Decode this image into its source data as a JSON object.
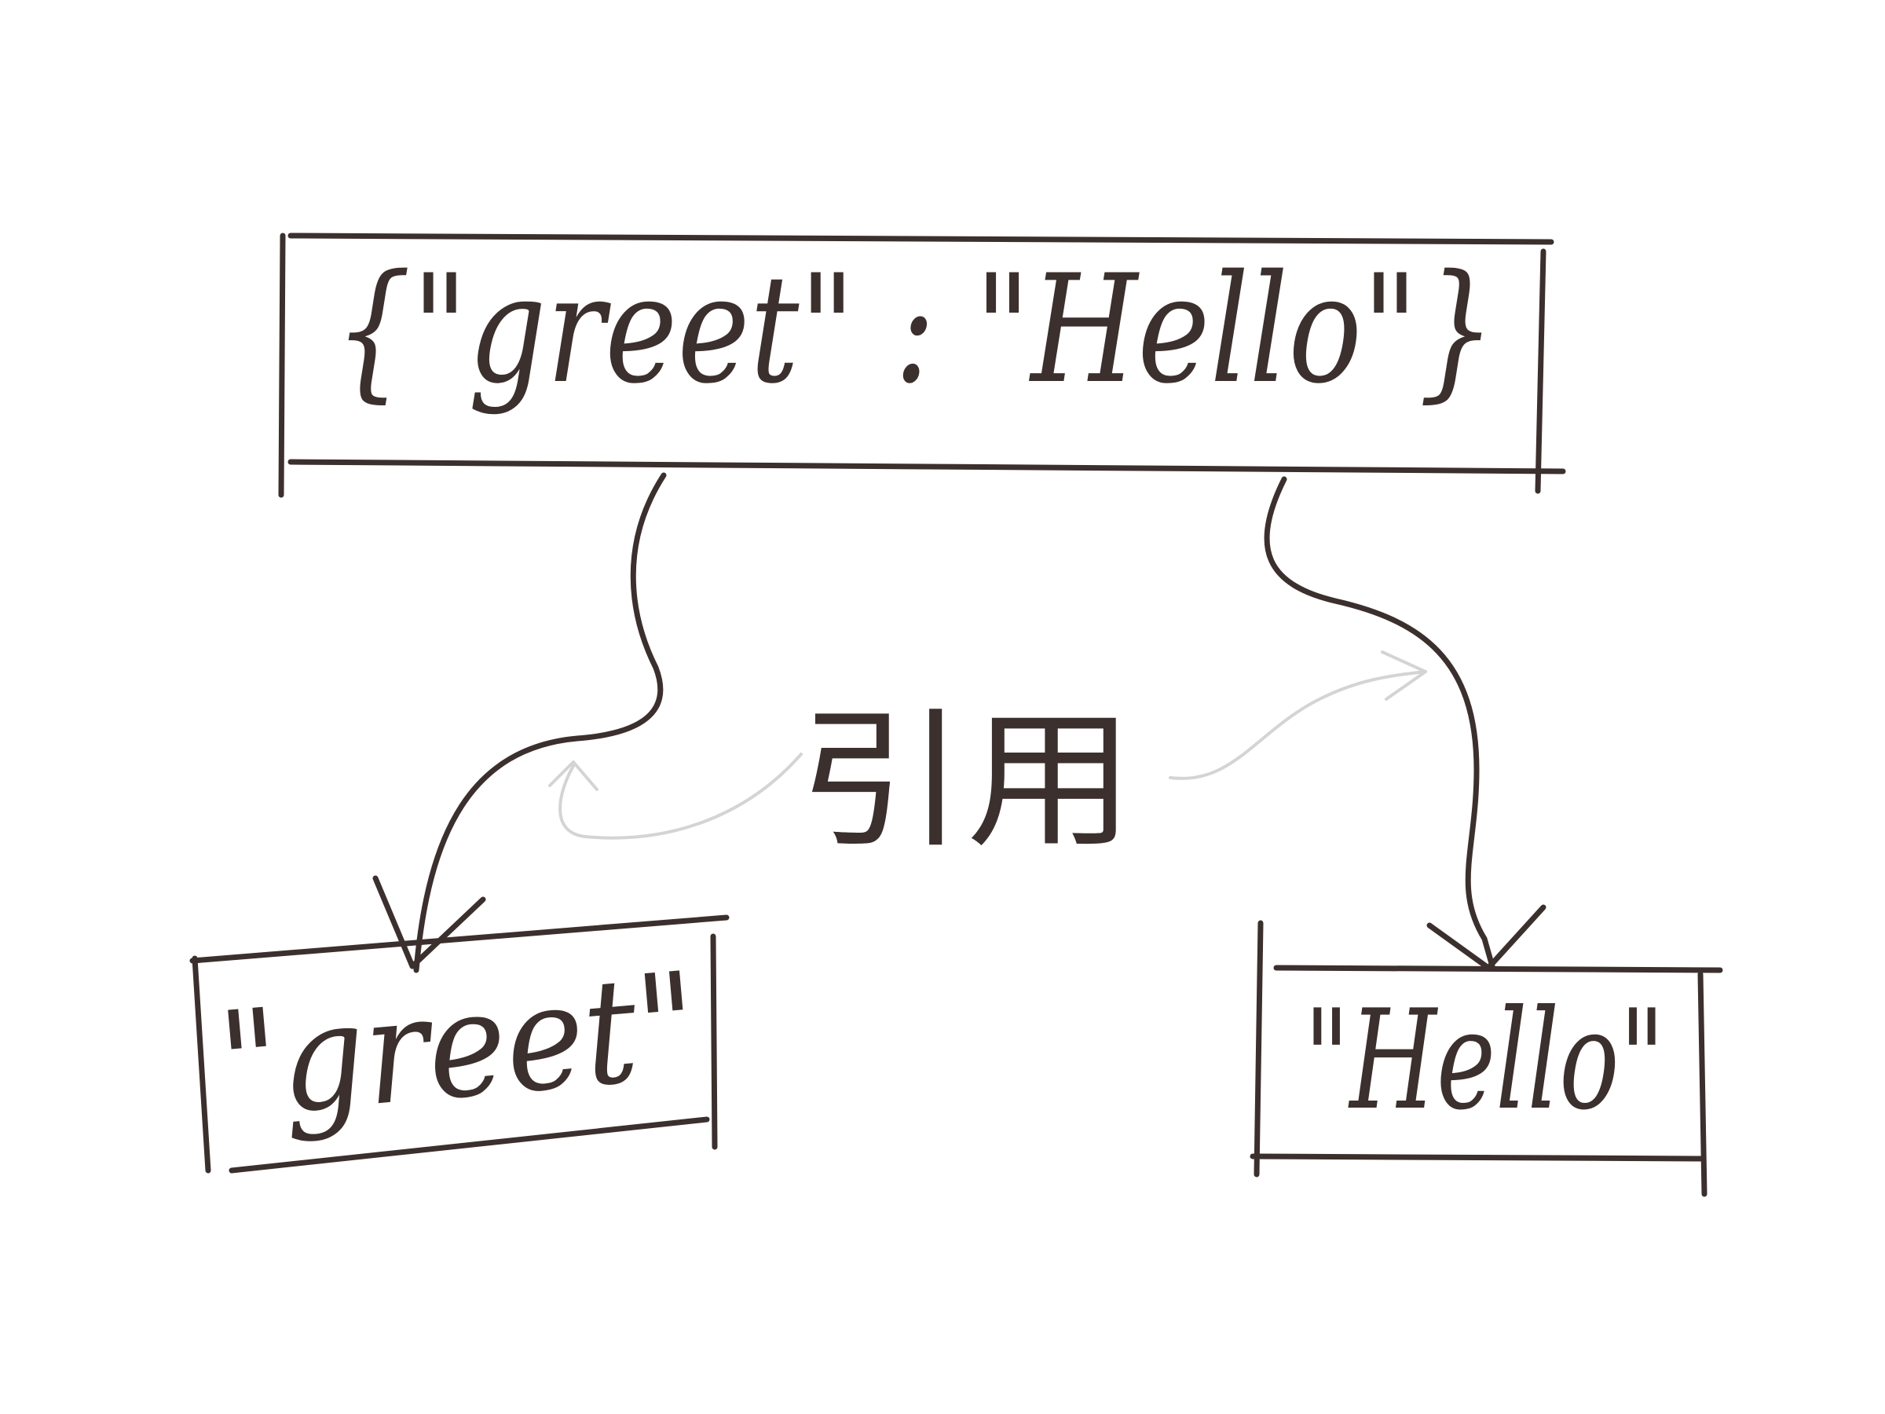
{
  "object_box": {
    "text": "{\"greet\" : \"Hello\"}"
  },
  "key_box": {
    "text": "\"greet\""
  },
  "value_box": {
    "text": "\"Hello\""
  },
  "reference_label": "引用",
  "colors": {
    "ink": "#3b302d",
    "faint_arrow": "#d4d4d4",
    "background": "#ffffff"
  }
}
